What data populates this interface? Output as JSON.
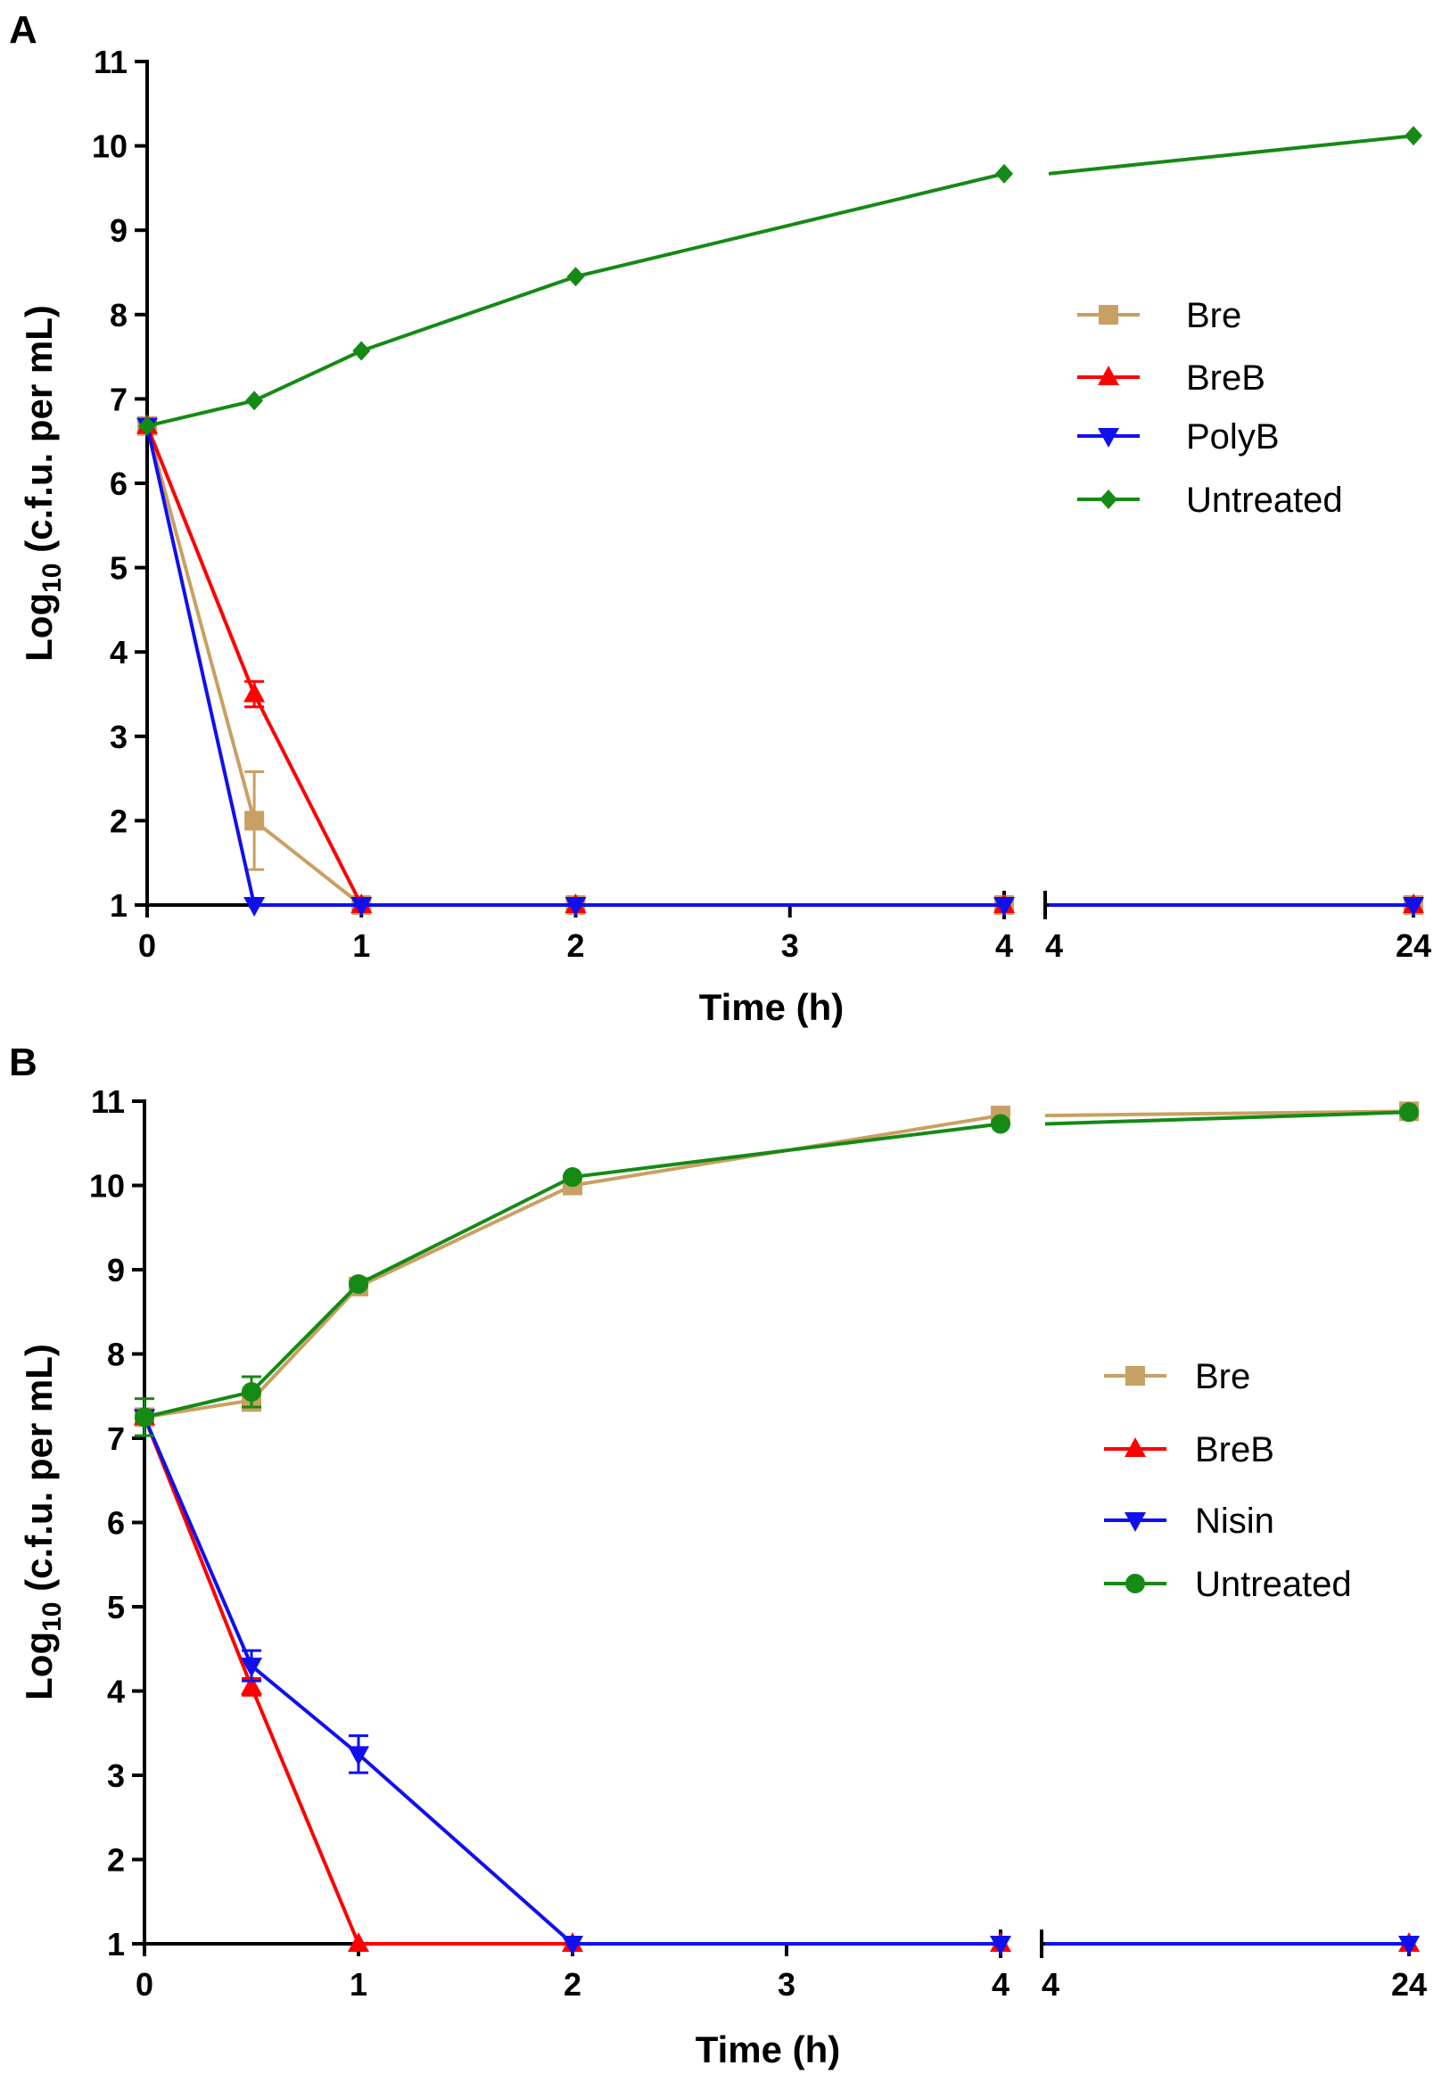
{
  "colors": {
    "Bre": "#C9A063",
    "BreB": "#FF0000",
    "PolyB": "#1010EE",
    "Nisin": "#1010EE",
    "Untreated": "#158A15",
    "axis": "#000000"
  },
  "chart_data": [
    {
      "panel_label": "A",
      "type": "line",
      "xlabel": "Time (h)",
      "ylabel_main": "Log",
      "ylabel_sub": "10",
      "ylabel_rest": " (c.f.u. per mL)",
      "ylim": [
        1,
        11
      ],
      "yticks": [
        "1",
        "2",
        "3",
        "4",
        "5",
        "6",
        "7",
        "8",
        "9",
        "10",
        "11"
      ],
      "xlim_segment1": [
        0,
        4
      ],
      "xticks_segment1": [
        "0",
        "1",
        "2",
        "3",
        "4"
      ],
      "xticks_segment2": [
        "4",
        "24"
      ],
      "legend_position": "right-middle",
      "series": [
        {
          "name": "Bre",
          "marker": "square",
          "x": [
            0,
            0.5,
            1,
            2,
            4,
            24
          ],
          "y": [
            6.68,
            2.0,
            1.0,
            1.0,
            1.0,
            1.0
          ],
          "err": [
            0,
            0.58,
            0,
            0,
            0,
            0
          ]
        },
        {
          "name": "BreB",
          "marker": "triangle-up",
          "x": [
            0,
            0.5,
            1,
            2,
            4,
            24
          ],
          "y": [
            6.68,
            3.5,
            1.0,
            1.0,
            1.0,
            1.0
          ],
          "err": [
            0,
            0.15,
            0,
            0,
            0,
            0
          ]
        },
        {
          "name": "PolyB",
          "marker": "triangle-down",
          "x": [
            0,
            0.5,
            1,
            2,
            4,
            24
          ],
          "y": [
            6.68,
            1.0,
            1.0,
            1.0,
            1.0,
            1.0
          ],
          "err": [
            0,
            0,
            0,
            0,
            0,
            0
          ]
        },
        {
          "name": "Untreated",
          "marker": "diamond",
          "x": [
            0,
            0.5,
            1,
            2,
            4,
            24
          ],
          "y": [
            6.68,
            6.98,
            7.57,
            8.45,
            9.67,
            10.12
          ],
          "err": [
            0,
            0,
            0,
            0,
            0,
            0
          ]
        }
      ]
    },
    {
      "panel_label": "B",
      "type": "line",
      "xlabel": "Time (h)",
      "ylabel_main": "Log",
      "ylabel_sub": "10",
      "ylabel_rest": " (c.f.u. per mL)",
      "ylim": [
        1,
        11
      ],
      "yticks": [
        "1",
        "2",
        "3",
        "4",
        "5",
        "6",
        "7",
        "8",
        "9",
        "10",
        "11"
      ],
      "xlim_segment1": [
        0,
        4
      ],
      "xticks_segment1": [
        "0",
        "1",
        "2",
        "3",
        "4"
      ],
      "xticks_segment2": [
        "4",
        "24"
      ],
      "legend_position": "right-middle",
      "series": [
        {
          "name": "Bre",
          "marker": "square",
          "x": [
            0,
            0.5,
            1,
            2,
            4,
            24
          ],
          "y": [
            7.25,
            7.45,
            8.8,
            10.0,
            10.83,
            10.88
          ],
          "err": [
            0,
            0.12,
            0,
            0,
            0,
            0
          ]
        },
        {
          "name": "BreB",
          "marker": "triangle-up",
          "x": [
            0,
            0.5,
            1,
            2,
            4,
            24
          ],
          "y": [
            7.25,
            4.05,
            1.0,
            1.0,
            1.0,
            1.0
          ],
          "err": [
            0,
            0.1,
            0,
            0,
            0,
            0
          ]
        },
        {
          "name": "Nisin",
          "marker": "triangle-down",
          "x": [
            0,
            0.5,
            1,
            2,
            4,
            24
          ],
          "y": [
            7.25,
            4.3,
            3.25,
            1.0,
            1.0,
            1.0
          ],
          "err": [
            0,
            0.18,
            0.22,
            0,
            0,
            0
          ]
        },
        {
          "name": "Untreated",
          "marker": "circle",
          "x": [
            0,
            0.5,
            1,
            2,
            4,
            24
          ],
          "y": [
            7.25,
            7.55,
            8.83,
            10.1,
            10.73,
            10.87
          ],
          "err": [
            0.22,
            0.18,
            0,
            0,
            0,
            0
          ]
        }
      ]
    }
  ]
}
